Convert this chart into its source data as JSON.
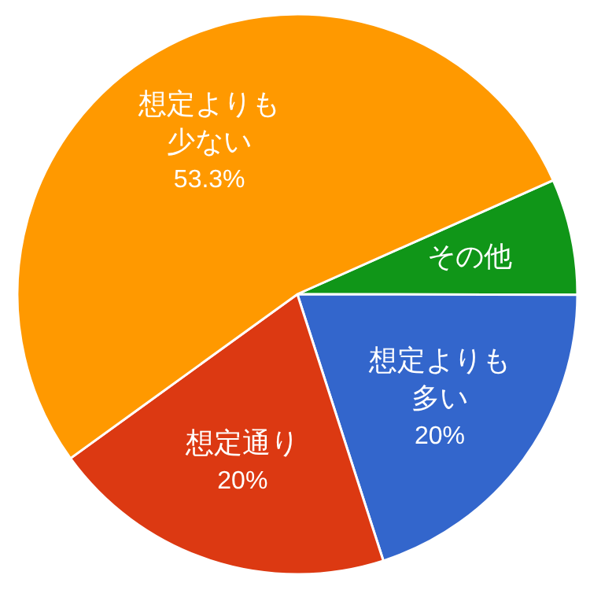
{
  "chart_data": {
    "type": "pie",
    "categories": [
      "その他",
      "想定よりも多い",
      "想定通り",
      "想定よりも少ない"
    ],
    "values": [
      6.7,
      20,
      20,
      53.3
    ],
    "colors": [
      "#109618",
      "#3366cc",
      "#dc3912",
      "#ff9900"
    ],
    "value_labels": [
      null,
      "20%",
      "20%",
      "53.3%"
    ],
    "legend": false
  }
}
